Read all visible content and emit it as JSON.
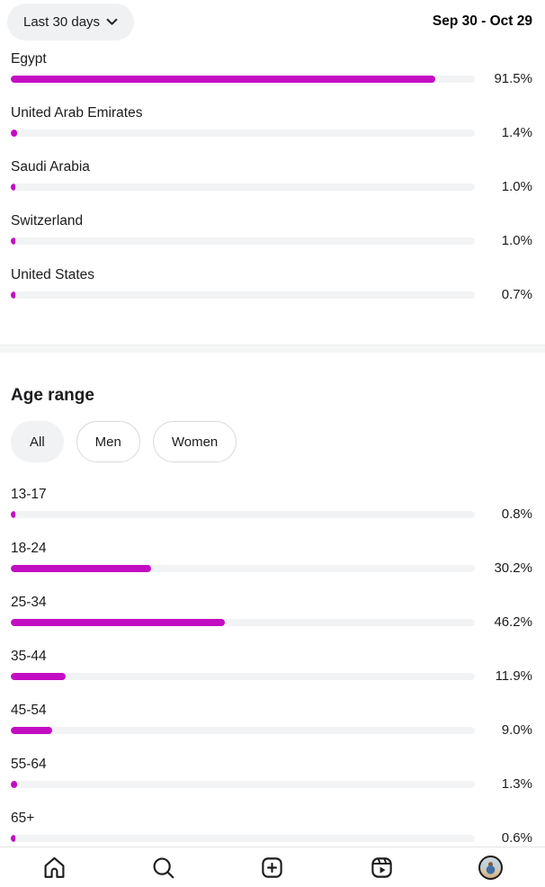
{
  "header": {
    "date_filter_label": "Last 30 days",
    "date_range": "Sep 30 - Oct 29"
  },
  "countries": {
    "rows": [
      {
        "label": "Egypt",
        "value": 91.5,
        "display": "91.5%"
      },
      {
        "label": "United Arab Emirates",
        "value": 1.4,
        "display": "1.4%"
      },
      {
        "label": "Saudi Arabia",
        "value": 1.0,
        "display": "1.0%"
      },
      {
        "label": "Switzerland",
        "value": 1.0,
        "display": "1.0%"
      },
      {
        "label": "United States",
        "value": 0.7,
        "display": "0.7%"
      }
    ]
  },
  "age": {
    "title": "Age range",
    "filters": [
      {
        "label": "All",
        "active": true
      },
      {
        "label": "Men",
        "active": false
      },
      {
        "label": "Women",
        "active": false
      }
    ],
    "rows": [
      {
        "label": "13-17",
        "value": 0.8,
        "display": "0.8%"
      },
      {
        "label": "18-24",
        "value": 30.2,
        "display": "30.2%"
      },
      {
        "label": "25-34",
        "value": 46.2,
        "display": "46.2%"
      },
      {
        "label": "35-44",
        "value": 11.9,
        "display": "11.9%"
      },
      {
        "label": "45-54",
        "value": 9.0,
        "display": "9.0%"
      },
      {
        "label": "55-64",
        "value": 1.3,
        "display": "1.3%"
      },
      {
        "label": "65+",
        "value": 0.6,
        "display": "0.6%"
      }
    ]
  },
  "nav": {
    "items": [
      "home",
      "search",
      "create",
      "reels",
      "profile"
    ]
  },
  "colors": {
    "bar_fill": "#C30DC3",
    "bar_track": "#F2F3F5",
    "pill_bg": "#F0F1F3",
    "divider": "#F5F6F6"
  },
  "chart_data": [
    {
      "type": "bar",
      "orientation": "horizontal",
      "title": "",
      "categories": [
        "Egypt",
        "United Arab Emirates",
        "Saudi Arabia",
        "Switzerland",
        "United States"
      ],
      "values": [
        91.5,
        1.4,
        1.0,
        1.0,
        0.7
      ],
      "unit": "%",
      "xlim": [
        0,
        100
      ],
      "grid": false,
      "value_labels": [
        "91.5%",
        "1.4%",
        "1.0%",
        "1.0%",
        "0.7%"
      ]
    },
    {
      "type": "bar",
      "orientation": "horizontal",
      "title": "Age range",
      "categories": [
        "13-17",
        "18-24",
        "25-34",
        "35-44",
        "45-54",
        "55-64",
        "65+"
      ],
      "values": [
        0.8,
        30.2,
        46.2,
        11.9,
        9.0,
        1.3,
        0.6
      ],
      "unit": "%",
      "xlim": [
        0,
        100
      ],
      "grid": false,
      "value_labels": [
        "0.8%",
        "30.2%",
        "46.2%",
        "11.9%",
        "9.0%",
        "1.3%",
        "0.6%"
      ],
      "filters": [
        "All",
        "Men",
        "Women"
      ],
      "active_filter": "All"
    }
  ]
}
